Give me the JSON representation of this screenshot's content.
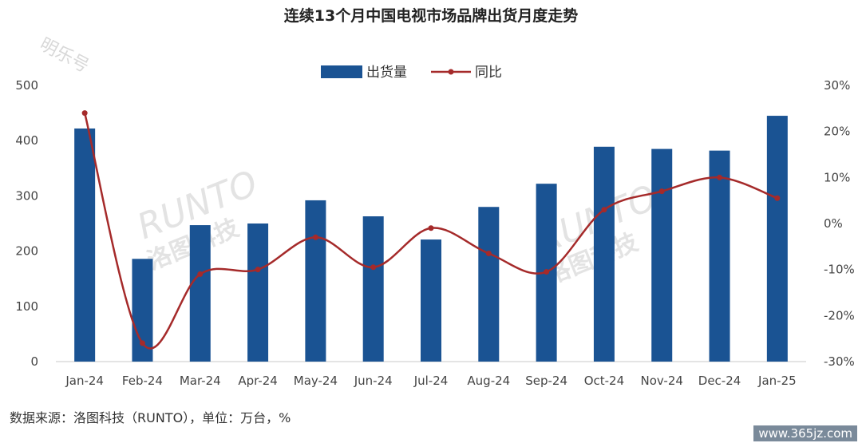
{
  "chart_data": {
    "type": "bar+line",
    "title": "连续13个月中国电视市场品牌出货月度走势",
    "categories": [
      "Jan-24",
      "Feb-24",
      "Mar-24",
      "Apr-24",
      "May-24",
      "Jun-24",
      "Jul-24",
      "Aug-24",
      "Sep-24",
      "Oct-24",
      "Nov-24",
      "Dec-24",
      "Jan-25"
    ],
    "series": [
      {
        "name": "出货量",
        "type": "bar",
        "axis": "left",
        "color": "#1a5393",
        "values": [
          422,
          186,
          247,
          250,
          292,
          263,
          221,
          280,
          322,
          389,
          385,
          382,
          445
        ]
      },
      {
        "name": "同比",
        "type": "line",
        "axis": "right",
        "color": "#a52a2a",
        "values": [
          24,
          -26,
          -11,
          -10,
          -3,
          -9.5,
          -1,
          -6.5,
          -10.5,
          3,
          7,
          10,
          5.5
        ]
      }
    ],
    "ylim_left": [
      0,
      500
    ],
    "yticks_left": [
      "0",
      "100",
      "200",
      "300",
      "400",
      "500"
    ],
    "ylim_right": [
      -30,
      30
    ],
    "yticks_right": [
      "-30%",
      "-20%",
      "-10%",
      "0%",
      "10%",
      "20%",
      "30%"
    ],
    "legend_position": "top-center",
    "grid": false
  },
  "footer": {
    "source": "数据来源：洛图科技（RUNTO），单位：万台，%"
  },
  "watermarks": {
    "top_left": "明乐号",
    "brand_latin": "RUNTO",
    "brand_cn": "洛图科技",
    "site": "www.365jz.com"
  }
}
